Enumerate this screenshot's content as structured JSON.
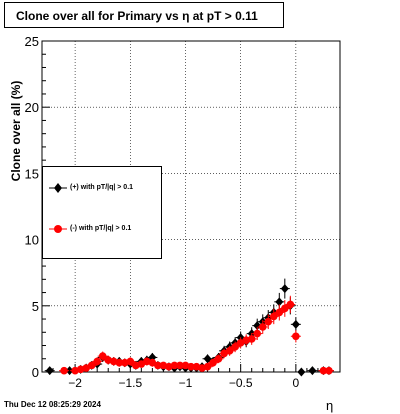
{
  "title": "Clone  over all for Primary vs   η  at pT > 0.11",
  "ylabel": "Clone  over all (%)",
  "xlabel": "η",
  "timestamp": "Thu Dec 12 08:25:29 2024",
  "legend": [
    {
      "label": "(+) with pT/|q| > 0.1",
      "color": "#000000"
    },
    {
      "label": "(-) with pT/|q| > 0.1",
      "color": "#ff0000"
    }
  ],
  "chart_data": {
    "type": "scatter",
    "xlim": [
      -2.3,
      0.4
    ],
    "ylim": [
      0,
      25
    ],
    "x_ticks": [
      -2,
      -1.5,
      -1,
      -0.5,
      0
    ],
    "x_tick_labels": [
      "−2",
      "−1.5",
      "−1",
      "−0.5",
      "0"
    ],
    "y_ticks": [
      0,
      5,
      10,
      15,
      20,
      25
    ],
    "grid": true,
    "legend_position": "left-middle",
    "series": [
      {
        "name": "(+) with pT/|q| > 0.1",
        "color": "#000000",
        "marker": "diamond",
        "x": [
          -2.23,
          -2.05,
          -1.95,
          -1.9,
          -1.85,
          -1.8,
          -1.75,
          -1.7,
          -1.65,
          -1.6,
          -1.55,
          -1.5,
          -1.45,
          -1.4,
          -1.35,
          -1.3,
          -1.25,
          -1.2,
          -1.15,
          -1.1,
          -1.05,
          -1.0,
          -0.95,
          -0.9,
          -0.85,
          -0.8,
          -0.75,
          -0.7,
          -0.65,
          -0.6,
          -0.55,
          -0.5,
          -0.45,
          -0.4,
          -0.35,
          -0.3,
          -0.25,
          -0.2,
          -0.15,
          -0.1,
          -0.05,
          0.0,
          0.05,
          0.15,
          0.25,
          0.3
        ],
        "y": [
          0.1,
          0.1,
          0.2,
          0.3,
          0.5,
          0.6,
          1.1,
          0.9,
          0.8,
          0.8,
          0.7,
          0.6,
          0.5,
          0.8,
          0.9,
          1.1,
          0.5,
          0.4,
          0.4,
          0.3,
          0.4,
          0.3,
          0.3,
          0.3,
          0.4,
          1.0,
          0.8,
          1.1,
          1.6,
          1.9,
          2.2,
          2.6,
          2.3,
          2.9,
          3.5,
          3.8,
          4.1,
          4.5,
          5.3,
          6.3,
          5.0,
          3.6,
          0.0,
          0.1,
          0.1,
          0.1
        ]
      },
      {
        "name": "(-) with pT/|q| > 0.1",
        "color": "#ff0000",
        "marker": "circle",
        "x": [
          -2.1,
          -2.0,
          -1.95,
          -1.9,
          -1.85,
          -1.8,
          -1.75,
          -1.7,
          -1.65,
          -1.6,
          -1.55,
          -1.5,
          -1.45,
          -1.4,
          -1.35,
          -1.3,
          -1.25,
          -1.2,
          -1.15,
          -1.1,
          -1.05,
          -1.0,
          -0.95,
          -0.9,
          -0.85,
          -0.8,
          -0.75,
          -0.7,
          -0.65,
          -0.6,
          -0.55,
          -0.5,
          -0.45,
          -0.4,
          -0.35,
          -0.3,
          -0.25,
          -0.2,
          -0.15,
          -0.1,
          -0.05,
          0.0,
          0.25,
          0.3
        ],
        "y": [
          0.1,
          0.1,
          0.2,
          0.3,
          0.5,
          0.8,
          1.2,
          0.9,
          0.8,
          0.7,
          0.7,
          0.8,
          0.5,
          0.6,
          0.8,
          0.7,
          0.5,
          0.5,
          0.4,
          0.5,
          0.5,
          0.5,
          0.4,
          0.4,
          0.3,
          0.4,
          0.7,
          1.0,
          1.4,
          1.6,
          1.9,
          2.2,
          2.4,
          2.5,
          2.9,
          3.4,
          3.8,
          4.2,
          4.5,
          4.8,
          5.1,
          2.7,
          0.1,
          0.1
        ]
      }
    ]
  }
}
